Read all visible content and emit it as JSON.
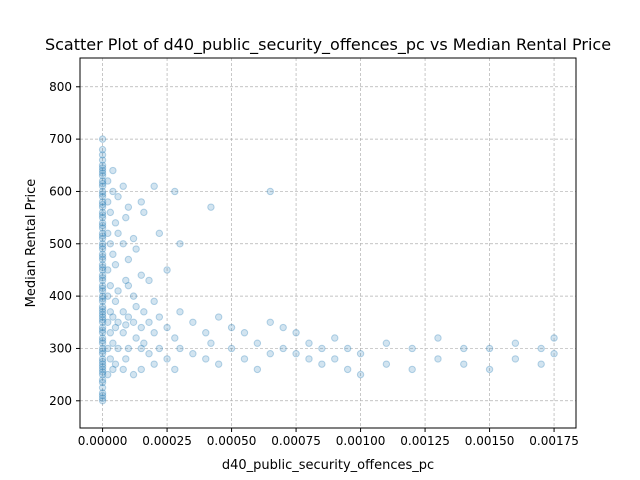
{
  "chart_data": {
    "type": "scatter",
    "title": "Scatter Plot of d40_public_security_offences_pc vs Median Rental Price",
    "xlabel": "d40_public_security_offences_pc",
    "ylabel": "Median Rental Price",
    "xlim": [
      -8.75e-05,
      0.001835
    ],
    "ylim": [
      148,
      855
    ],
    "xticks": [
      0,
      0.00025,
      0.0005,
      0.00075,
      0.001,
      0.00125,
      0.0015,
      0.00175
    ],
    "xtick_labels": [
      "0.00000",
      "0.00025",
      "0.00050",
      "0.00075",
      "0.00100",
      "0.00125",
      "0.00150",
      "0.00175"
    ],
    "yticks": [
      200,
      300,
      400,
      500,
      600,
      700,
      800
    ],
    "ytick_labels": [
      "200",
      "300",
      "400",
      "500",
      "600",
      "700",
      "800"
    ],
    "grid": true,
    "marker_color": "#1f77b4",
    "marker_alpha": 0.2,
    "series": [
      {
        "points": [
          [
            0,
            200
          ],
          [
            0,
            210
          ],
          [
            0,
            225
          ],
          [
            0,
            240
          ],
          [
            0,
            250
          ],
          [
            0,
            260
          ],
          [
            0,
            270
          ],
          [
            0,
            280
          ],
          [
            0,
            290
          ],
          [
            0,
            300
          ],
          [
            0,
            310
          ],
          [
            0,
            320
          ],
          [
            0,
            330
          ],
          [
            0,
            340
          ],
          [
            0,
            350
          ],
          [
            0,
            360
          ],
          [
            0,
            370
          ],
          [
            0,
            380
          ],
          [
            0,
            390
          ],
          [
            0,
            400
          ],
          [
            0,
            410
          ],
          [
            0,
            420
          ],
          [
            0,
            430
          ],
          [
            0,
            440
          ],
          [
            0,
            450
          ],
          [
            0,
            460
          ],
          [
            0,
            470
          ],
          [
            0,
            480
          ],
          [
            0,
            490
          ],
          [
            0,
            500
          ],
          [
            0,
            510
          ],
          [
            0,
            520
          ],
          [
            0,
            530
          ],
          [
            0,
            540
          ],
          [
            0,
            550
          ],
          [
            0,
            560
          ],
          [
            0,
            570
          ],
          [
            0,
            580
          ],
          [
            0,
            590
          ],
          [
            0,
            600
          ],
          [
            0,
            610
          ],
          [
            0,
            620
          ],
          [
            0,
            630
          ],
          [
            0,
            640
          ],
          [
            0,
            645
          ],
          [
            0,
            650
          ],
          [
            0,
            660
          ],
          [
            0,
            670
          ],
          [
            0,
            680
          ],
          [
            0,
            700
          ],
          [
            0,
            205
          ],
          [
            0,
            215
          ],
          [
            0,
            235
          ],
          [
            0,
            255
          ],
          [
            0,
            265
          ],
          [
            0,
            275
          ],
          [
            0,
            295
          ],
          [
            0,
            315
          ],
          [
            0,
            335
          ],
          [
            0,
            355
          ],
          [
            0,
            365
          ],
          [
            0,
            375
          ],
          [
            0,
            395
          ],
          [
            0,
            415
          ],
          [
            0,
            435
          ],
          [
            0,
            455
          ],
          [
            0,
            475
          ],
          [
            0,
            495
          ],
          [
            0,
            515
          ],
          [
            0,
            535
          ],
          [
            0,
            555
          ],
          [
            0,
            575
          ],
          [
            0,
            595
          ],
          [
            0,
            615
          ],
          [
            0,
            635
          ],
          [
            2e-05,
            250
          ],
          [
            2e-05,
            300
          ],
          [
            2e-05,
            350
          ],
          [
            2e-05,
            400
          ],
          [
            2e-05,
            450
          ],
          [
            2e-05,
            520
          ],
          [
            2e-05,
            580
          ],
          [
            2e-05,
            620
          ],
          [
            3e-05,
            280
          ],
          [
            3e-05,
            330
          ],
          [
            3e-05,
            370
          ],
          [
            3e-05,
            420
          ],
          [
            3e-05,
            500
          ],
          [
            3e-05,
            560
          ],
          [
            4e-05,
            260
          ],
          [
            4e-05,
            310
          ],
          [
            4e-05,
            360
          ],
          [
            4e-05,
            480
          ],
          [
            4e-05,
            600
          ],
          [
            4e-05,
            640
          ],
          [
            5e-05,
            270
          ],
          [
            5e-05,
            340
          ],
          [
            5e-05,
            390
          ],
          [
            5e-05,
            460
          ],
          [
            5e-05,
            540
          ],
          [
            6e-05,
            300
          ],
          [
            6e-05,
            350
          ],
          [
            6e-05,
            410
          ],
          [
            6e-05,
            520
          ],
          [
            6e-05,
            590
          ],
          [
            8e-05,
            260
          ],
          [
            8e-05,
            330
          ],
          [
            8e-05,
            370
          ],
          [
            8e-05,
            500
          ],
          [
            8e-05,
            610
          ],
          [
            9e-05,
            280
          ],
          [
            9e-05,
            345
          ],
          [
            9e-05,
            430
          ],
          [
            9e-05,
            550
          ],
          [
            0.0001,
            300
          ],
          [
            0.0001,
            360
          ],
          [
            0.0001,
            420
          ],
          [
            0.0001,
            470
          ],
          [
            0.0001,
            570
          ],
          [
            0.00012,
            250
          ],
          [
            0.00012,
            350
          ],
          [
            0.00012,
            400
          ],
          [
            0.00012,
            510
          ],
          [
            0.00013,
            320
          ],
          [
            0.00013,
            380
          ],
          [
            0.00013,
            490
          ],
          [
            0.00015,
            260
          ],
          [
            0.00015,
            300
          ],
          [
            0.00015,
            340
          ],
          [
            0.00015,
            440
          ],
          [
            0.00015,
            580
          ],
          [
            0.00016,
            310
          ],
          [
            0.00016,
            370
          ],
          [
            0.00016,
            560
          ],
          [
            0.00018,
            290
          ],
          [
            0.00018,
            350
          ],
          [
            0.00018,
            430
          ],
          [
            0.0002,
            270
          ],
          [
            0.0002,
            330
          ],
          [
            0.0002,
            390
          ],
          [
            0.0002,
            610
          ],
          [
            0.00022,
            300
          ],
          [
            0.00022,
            360
          ],
          [
            0.00022,
            520
          ],
          [
            0.00025,
            280
          ],
          [
            0.00025,
            340
          ],
          [
            0.00025,
            450
          ],
          [
            0.00028,
            260
          ],
          [
            0.00028,
            320
          ],
          [
            0.00028,
            600
          ],
          [
            0.0003,
            300
          ],
          [
            0.0003,
            370
          ],
          [
            0.0003,
            500
          ],
          [
            0.00035,
            290
          ],
          [
            0.00035,
            350
          ],
          [
            0.0004,
            280
          ],
          [
            0.0004,
            330
          ],
          [
            0.00042,
            310
          ],
          [
            0.00042,
            570
          ],
          [
            0.00045,
            270
          ],
          [
            0.00045,
            360
          ],
          [
            0.0005,
            300
          ],
          [
            0.0005,
            340
          ],
          [
            0.00055,
            280
          ],
          [
            0.00055,
            330
          ],
          [
            0.0006,
            260
          ],
          [
            0.0006,
            310
          ],
          [
            0.00065,
            290
          ],
          [
            0.00065,
            350
          ],
          [
            0.00065,
            600
          ],
          [
            0.0007,
            300
          ],
          [
            0.0007,
            340
          ],
          [
            0.00075,
            290
          ],
          [
            0.00075,
            330
          ],
          [
            0.0008,
            280
          ],
          [
            0.0008,
            310
          ],
          [
            0.00085,
            270
          ],
          [
            0.00085,
            300
          ],
          [
            0.0009,
            280
          ],
          [
            0.0009,
            320
          ],
          [
            0.00095,
            260
          ],
          [
            0.00095,
            300
          ],
          [
            0.001,
            250
          ],
          [
            0.001,
            290
          ],
          [
            0.0011,
            270
          ],
          [
            0.0011,
            310
          ],
          [
            0.0012,
            260
          ],
          [
            0.0012,
            300
          ],
          [
            0.0013,
            280
          ],
          [
            0.0013,
            320
          ],
          [
            0.0014,
            270
          ],
          [
            0.0014,
            300
          ],
          [
            0.0015,
            260
          ],
          [
            0.0015,
            300
          ],
          [
            0.0016,
            280
          ],
          [
            0.0016,
            310
          ],
          [
            0.0017,
            270
          ],
          [
            0.0017,
            300
          ],
          [
            0.00175,
            290
          ],
          [
            0.00175,
            320
          ]
        ]
      }
    ]
  }
}
